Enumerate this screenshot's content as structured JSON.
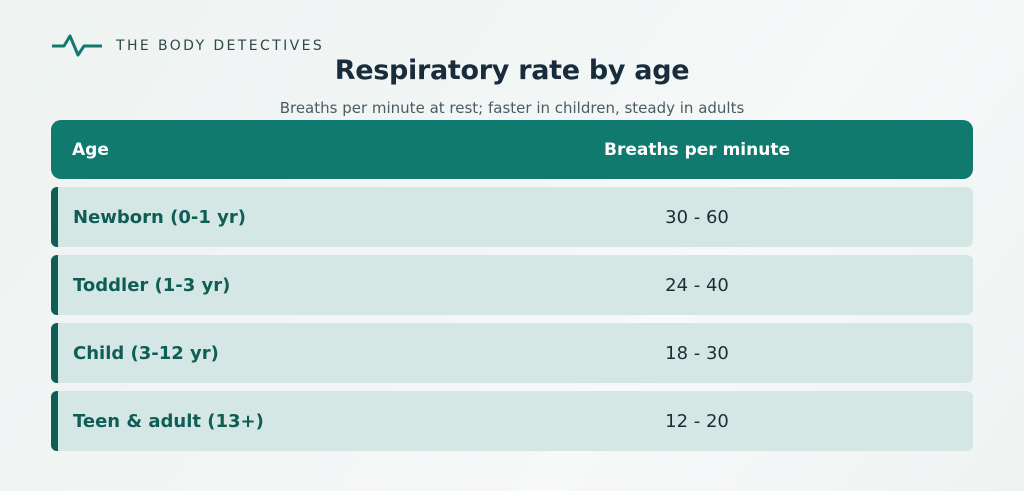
{
  "brand": {
    "name": "THE BODY DETECTIVES",
    "icon": "heartbeat-pulse-icon",
    "color": "#107a6f"
  },
  "title": "Respiratory rate by age",
  "subtitle": "Breaths per minute at rest; faster in children, steady in adults",
  "table": {
    "headers": {
      "age": "Age",
      "rate": "Breaths per minute"
    },
    "rows": [
      {
        "age": "Newborn (0-1 yr)",
        "rate": "30 - 60"
      },
      {
        "age": "Toddler (1-3 yr)",
        "rate": "24 - 40"
      },
      {
        "age": "Child (3-12 yr)",
        "rate": "18 - 30"
      },
      {
        "age": "Teen & adult (13+)",
        "rate": "12 - 20"
      }
    ]
  },
  "colors": {
    "header_bg": "#107a6f",
    "row_bg": "#d5e7e4",
    "row_accent": "#0f5e56",
    "title": "#182c3c"
  }
}
